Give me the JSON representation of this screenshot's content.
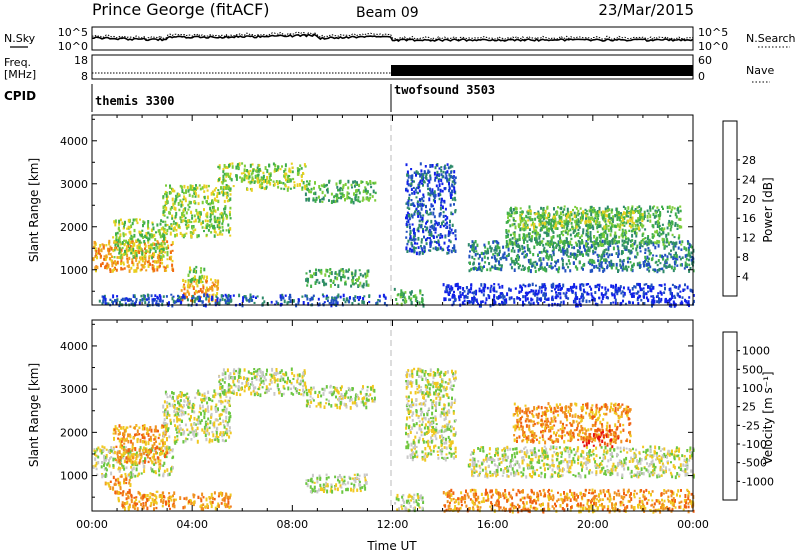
{
  "header": {
    "station": "Prince George (fitACF)",
    "beam": "Beam 09",
    "date": "23/Mar/2015"
  },
  "noise_panel": {
    "left_label": "N.Sky",
    "right_label": "N.Search",
    "left_ticks": [
      "10^5",
      "10^0"
    ],
    "right_ticks": [
      "10^5",
      "10^0"
    ]
  },
  "freq_panel": {
    "left_label_1": "Freq.",
    "left_label_2": "[MHz]",
    "right_label": "Nave",
    "left_ticks": [
      "18",
      "8"
    ],
    "right_ticks": [
      "60",
      "0"
    ]
  },
  "cpid_panel": {
    "label": "CPID",
    "modes": [
      {
        "name": "themis 3300",
        "start_hour": 0
      },
      {
        "name": "twofsound 3503",
        "start_hour": 12
      }
    ]
  },
  "chart_data": [
    {
      "type": "heatmap",
      "name": "power",
      "xlabel": "",
      "ylabel": "Slant Range [km]",
      "ylim": [
        180,
        4600
      ],
      "xlim": [
        0,
        24
      ],
      "yticks": [
        "1000",
        "2000",
        "3000",
        "4000"
      ],
      "colorbar": {
        "label": "Power [dB]",
        "tick_labels": [
          "4",
          "8",
          "12",
          "16",
          "20",
          "24",
          "28"
        ],
        "colors": [
          "#1020e8",
          "#2050c0",
          "#2e8a6a",
          "#3fae4a",
          "#7ccd3a",
          "#e8d020",
          "#f0a020",
          "#f06a10",
          "#e01010"
        ]
      },
      "echo_regions": [
        {
          "t": [
            0.0,
            3.2
          ],
          "r": [
            1000,
            1700
          ],
          "level": 6
        },
        {
          "t": [
            0.8,
            3.0
          ],
          "r": [
            1300,
            2200
          ],
          "level": 4
        },
        {
          "t": [
            2.8,
            5.5
          ],
          "r": [
            1800,
            3000
          ],
          "level": 4
        },
        {
          "t": [
            5.0,
            8.5
          ],
          "r": [
            2900,
            3500
          ],
          "level": 4
        },
        {
          "t": [
            8.5,
            11.3
          ],
          "r": [
            2600,
            3100
          ],
          "level": 3
        },
        {
          "t": [
            3.5,
            5.0
          ],
          "r": [
            300,
            800
          ],
          "level": 6
        },
        {
          "t": [
            3.8,
            4.6
          ],
          "r": [
            700,
            1100
          ],
          "level": 4
        },
        {
          "t": [
            8.5,
            11.0
          ],
          "r": [
            650,
            1050
          ],
          "level": 3
        },
        {
          "t": [
            0.2,
            11.8
          ],
          "r": [
            200,
            450
          ],
          "level": 1
        },
        {
          "t": [
            12.0,
            13.2
          ],
          "r": [
            200,
            600
          ],
          "level": 3
        },
        {
          "t": [
            12.5,
            14.5
          ],
          "r": [
            1400,
            3500
          ],
          "level": 1
        },
        {
          "t": [
            15.0,
            24.0
          ],
          "r": [
            1000,
            1700
          ],
          "level": 2
        },
        {
          "t": [
            16.5,
            23.5
          ],
          "r": [
            1600,
            2500
          ],
          "level": 3
        },
        {
          "t": [
            17.0,
            22.0
          ],
          "r": [
            2000,
            2400
          ],
          "level": 4
        },
        {
          "t": [
            14.0,
            24.0
          ],
          "r": [
            200,
            700
          ],
          "level": 0
        }
      ]
    },
    {
      "type": "heatmap",
      "name": "velocity",
      "xlabel": "Time UT",
      "ylabel": "Slant Range [km]",
      "ylim": [
        180,
        4600
      ],
      "xlim": [
        0,
        24
      ],
      "xticks": [
        "00:00",
        "04:00",
        "08:00",
        "12:00",
        "16:00",
        "20:00",
        "00:00"
      ],
      "yticks": [
        "1000",
        "2000",
        "3000",
        "4000"
      ],
      "colorbar": {
        "label": "Velocity [m s⁻¹]",
        "tick_labels": [
          "1000",
          "500",
          "100",
          "25",
          "-25",
          "-100",
          "-500",
          "-1000"
        ],
        "colors": [
          "#1c3cc0",
          "#2e6ab4",
          "#2e8a5a",
          "#6ac640",
          "#c8c8c8",
          "#f0c820",
          "#f09020",
          "#f06010",
          "#e81010"
        ]
      },
      "echo_regions": [
        {
          "t": [
            0.0,
            3.2
          ],
          "r": [
            1000,
            1700
          ],
          "level": 4
        },
        {
          "t": [
            0.8,
            3.0
          ],
          "r": [
            1300,
            2200
          ],
          "level": 6
        },
        {
          "t": [
            2.8,
            5.5
          ],
          "r": [
            1800,
            3000
          ],
          "level": 4
        },
        {
          "t": [
            5.0,
            8.5
          ],
          "r": [
            2900,
            3500
          ],
          "level": 4
        },
        {
          "t": [
            8.5,
            11.3
          ],
          "r": [
            2600,
            3100
          ],
          "level": 4
        },
        {
          "t": [
            1.0,
            5.5
          ],
          "r": [
            250,
            650
          ],
          "level": 6
        },
        {
          "t": [
            0.5,
            1.5
          ],
          "r": [
            600,
            1000
          ],
          "level": 6
        },
        {
          "t": [
            8.5,
            11.0
          ],
          "r": [
            650,
            1050
          ],
          "level": 4
        },
        {
          "t": [
            12.0,
            13.2
          ],
          "r": [
            200,
            600
          ],
          "level": 4
        },
        {
          "t": [
            12.5,
            14.5
          ],
          "r": [
            1400,
            3500
          ],
          "level": 4
        },
        {
          "t": [
            15.0,
            24.0
          ],
          "r": [
            1000,
            1700
          ],
          "level": 4
        },
        {
          "t": [
            16.8,
            21.5
          ],
          "r": [
            1800,
            2700
          ],
          "level": 6
        },
        {
          "t": [
            19.5,
            21.0
          ],
          "r": [
            1700,
            2100
          ],
          "level": 7
        },
        {
          "t": [
            14.0,
            24.0
          ],
          "r": [
            200,
            700
          ],
          "level": 6
        }
      ]
    }
  ]
}
